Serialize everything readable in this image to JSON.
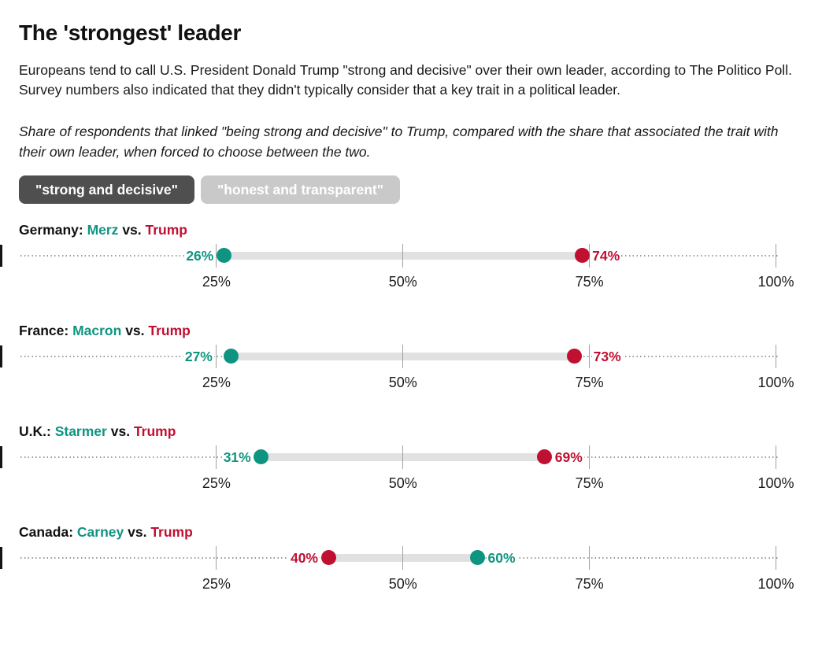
{
  "header": {
    "title": "The 'strongest' leader",
    "intro": "Europeans tend to call U.S. President Donald Trump \"strong and decisive\" over their own leader, according to The Politico Poll. Survey numbers also indicated that they didn't typically consider that a key trait in a political leader.",
    "note": "Share of respondents that linked \"being strong and decisive\" to Trump, compared with the share that associated the trait with their own leader, when forced to choose between the two."
  },
  "toggle": {
    "options": [
      {
        "label": "\"strong and decisive\"",
        "active": true
      },
      {
        "label": "\"honest and transparent\"",
        "active": false
      }
    ]
  },
  "colors": {
    "own_leader": "#0f9481",
    "trump": "#bf1032",
    "active_button_bg": "#4f4f4f",
    "inactive_button_bg": "#c9c9c9",
    "connector": "#e1e1e1",
    "text": "#191919"
  },
  "chart_data": {
    "type": "dumbbell",
    "unit": "%",
    "axis": {
      "min": 0,
      "max": 100,
      "ticks": [
        25,
        50,
        75,
        100
      ],
      "tick_labels": [
        "25%",
        "50%",
        "75%",
        "100%"
      ],
      "grid": "dotted-baseline-per-row",
      "zero_marker": true
    },
    "series": [
      {
        "name": "own_leader",
        "color": "#0f9481"
      },
      {
        "name": "trump",
        "color": "#bf1032"
      }
    ],
    "rows": [
      {
        "country_label": "Germany:",
        "leader_name": "Merz",
        "vs_label": "vs.",
        "trump_name": "Trump",
        "leader_value": 26,
        "leader_value_label": "26%",
        "trump_value": 74,
        "trump_value_label": "74%"
      },
      {
        "country_label": "France:",
        "leader_name": "Macron",
        "vs_label": "vs.",
        "trump_name": "Trump",
        "leader_value": 27,
        "leader_value_label": "27%",
        "trump_value": 73,
        "trump_value_label": "73%"
      },
      {
        "country_label": "U.K.:",
        "leader_name": "Starmer",
        "vs_label": "vs.",
        "trump_name": "Trump",
        "leader_value": 31,
        "leader_value_label": "31%",
        "trump_value": 69,
        "trump_value_label": "69%"
      },
      {
        "country_label": "Canada:",
        "leader_name": "Carney",
        "vs_label": "vs.",
        "trump_name": "Trump",
        "leader_value": 60,
        "leader_value_label": "60%",
        "trump_value": 40,
        "trump_value_label": "40%"
      }
    ]
  }
}
